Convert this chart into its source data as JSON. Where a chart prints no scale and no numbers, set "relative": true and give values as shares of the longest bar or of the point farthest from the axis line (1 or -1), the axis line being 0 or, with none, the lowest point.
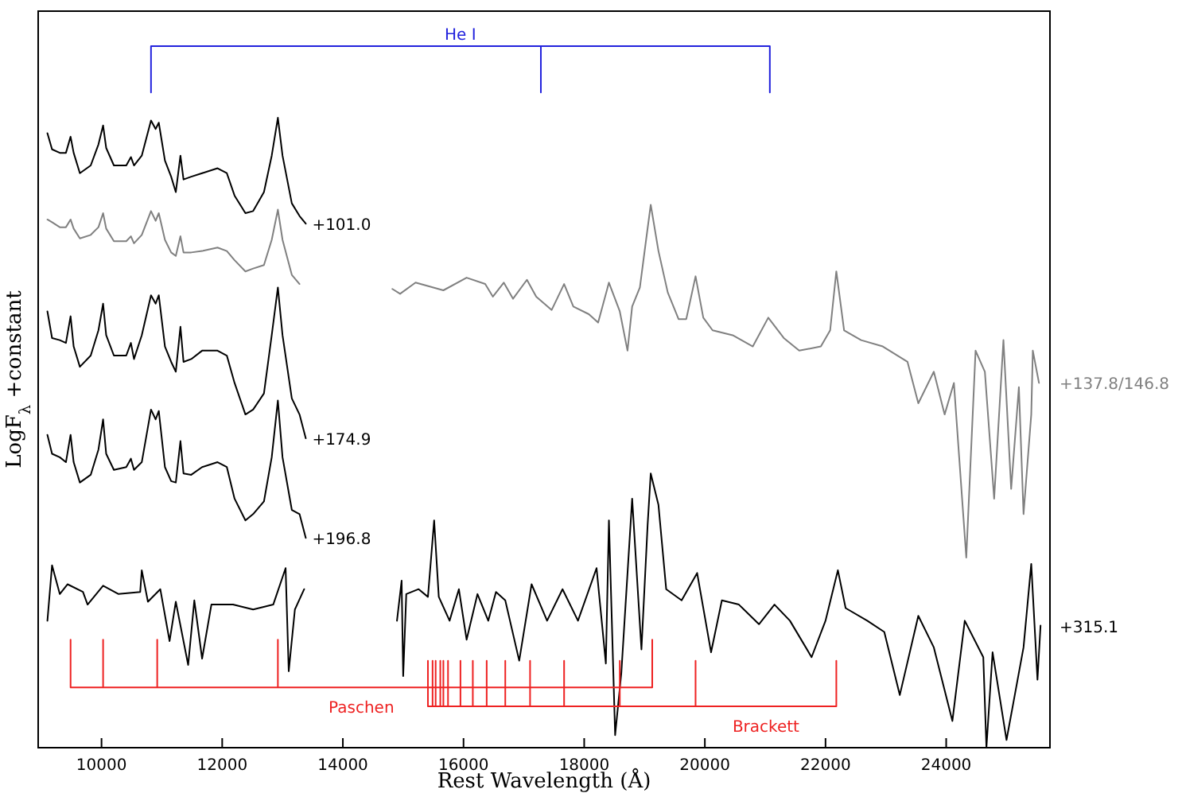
{
  "chart_data": {
    "type": "line",
    "xlabel": "Rest Wavelength (Å)",
    "ylabel": "LogF$_{λ}$ +constant",
    "relative": true,
    "xlim": [
      8950,
      25720
    ],
    "xticks": [
      10000,
      12000,
      14000,
      16000,
      18000,
      20000,
      22000,
      24000
    ],
    "tick_labels": "x",
    "grid": false,
    "series": [
      {
        "name": "+101.0",
        "color": "#000000",
        "x": [
          9103,
          9180,
          9308,
          9410,
          9487,
          9538,
          9641,
          9821,
          9949,
          10026,
          10077,
          10205,
          10410,
          10487,
          10538,
          10667,
          10820,
          10897,
          10949,
          11051,
          11154,
          11231,
          11308,
          11359,
          11487,
          11667,
          11923,
          12077,
          12205,
          12385,
          12513,
          12692,
          12821,
          12923,
          13000,
          13154,
          13282,
          13385
        ],
        "values": [
          0.876,
          0.853,
          0.848,
          0.848,
          0.871,
          0.848,
          0.819,
          0.83,
          0.86,
          0.887,
          0.855,
          0.83,
          0.83,
          0.842,
          0.83,
          0.844,
          0.894,
          0.882,
          0.891,
          0.837,
          0.814,
          0.792,
          0.844,
          0.81,
          0.814,
          0.819,
          0.826,
          0.819,
          0.787,
          0.762,
          0.765,
          0.792,
          0.844,
          0.898,
          0.844,
          0.776,
          0.758,
          0.747
        ]
      },
      {
        "name": "+137.8/146.8",
        "color": "#808080",
        "x": [
          9103,
          9180,
          9308,
          9410,
          9487,
          9538,
          9641,
          9821,
          9949,
          10026,
          10077,
          10205,
          10410,
          10487,
          10538,
          10667,
          10820,
          10897,
          10949,
          11051,
          11154,
          11231,
          11308,
          11359,
          11487,
          11667,
          11923,
          12077,
          12205,
          12385,
          12513,
          12692,
          12821,
          12923,
          13000,
          13154,
          13282,
          14000,
          14820,
          14949,
          15205,
          15666,
          16051,
          16359,
          16487,
          16667,
          16820,
          17051,
          17205,
          17461,
          17667,
          17820,
          18077,
          18231,
          18410,
          18590,
          18718,
          18795,
          18923,
          19026,
          19103,
          19231,
          19385,
          19564,
          19692,
          19846,
          19974,
          20128,
          20461,
          20795,
          21051,
          21308,
          21564,
          21923,
          22077,
          22179,
          22308,
          22590,
          22949,
          23359,
          23538,
          23795,
          23974,
          24128,
          24333,
          24487,
          24641,
          24795,
          24949,
          25077,
          25205,
          25282,
          25410,
          25436,
          25538
        ],
        "values": [
          0.753,
          0.749,
          0.742,
          0.742,
          0.753,
          0.74,
          0.726,
          0.731,
          0.742,
          0.762,
          0.74,
          0.722,
          0.722,
          0.729,
          0.719,
          0.731,
          0.765,
          0.751,
          0.762,
          0.724,
          0.706,
          0.701,
          0.729,
          0.706,
          0.706,
          0.708,
          0.713,
          0.708,
          0.695,
          0.679,
          0.683,
          0.688,
          0.724,
          0.767,
          0.724,
          0.674,
          0.661,
          null,
          0.654,
          0.647,
          0.663,
          0.652,
          0.67,
          0.661,
          0.643,
          0.663,
          0.64,
          0.667,
          0.643,
          0.624,
          0.661,
          0.629,
          0.618,
          0.606,
          0.663,
          0.622,
          0.566,
          0.629,
          0.656,
          0.724,
          0.774,
          0.708,
          0.649,
          0.611,
          0.611,
          0.672,
          0.613,
          0.595,
          0.588,
          0.572,
          0.613,
          0.584,
          0.566,
          0.572,
          0.595,
          0.679,
          0.595,
          0.581,
          0.572,
          0.55,
          0.491,
          0.536,
          0.475,
          0.52,
          0.271,
          0.566,
          0.536,
          0.355,
          0.581,
          0.369,
          0.514,
          0.333,
          0.475,
          0.566,
          0.52
        ]
      },
      {
        "name": "+174.9",
        "color": "#000000",
        "x": [
          9103,
          9180,
          9308,
          9410,
          9487,
          9538,
          9641,
          9821,
          9949,
          10026,
          10077,
          10205,
          10410,
          10487,
          10538,
          10667,
          10820,
          10897,
          10949,
          11051,
          11154,
          11231,
          11308,
          11359,
          11487,
          11667,
          11923,
          12077,
          12205,
          12385,
          12513,
          12692,
          12821,
          12923,
          13000,
          13154,
          13282,
          13385
        ],
        "values": [
          0.622,
          0.584,
          0.581,
          0.577,
          0.615,
          0.572,
          0.543,
          0.559,
          0.595,
          0.633,
          0.588,
          0.559,
          0.559,
          0.577,
          0.554,
          0.588,
          0.645,
          0.633,
          0.645,
          0.572,
          0.55,
          0.536,
          0.6,
          0.55,
          0.554,
          0.566,
          0.566,
          0.559,
          0.52,
          0.475,
          0.482,
          0.505,
          0.588,
          0.656,
          0.588,
          0.498,
          0.475,
          0.441
        ]
      },
      {
        "name": "+196.8",
        "color": "#000000",
        "x": [
          9103,
          9180,
          9308,
          9410,
          9487,
          9538,
          9641,
          9821,
          9949,
          10026,
          10077,
          10205,
          10410,
          10487,
          10538,
          10667,
          10820,
          10897,
          10949,
          11051,
          11154,
          11231,
          11308,
          11359,
          11487,
          11667,
          11923,
          12077,
          12205,
          12385,
          12513,
          12692,
          12821,
          12923,
          13000,
          13154,
          13282,
          13385
        ],
        "values": [
          0.446,
          0.419,
          0.414,
          0.407,
          0.446,
          0.407,
          0.378,
          0.389,
          0.425,
          0.468,
          0.419,
          0.396,
          0.4,
          0.412,
          0.396,
          0.407,
          0.482,
          0.468,
          0.48,
          0.4,
          0.38,
          0.378,
          0.437,
          0.391,
          0.389,
          0.4,
          0.407,
          0.4,
          0.355,
          0.324,
          0.333,
          0.351,
          0.414,
          0.495,
          0.414,
          0.339,
          0.333,
          0.299
        ]
      },
      {
        "name": "+315.1",
        "color": "#000000",
        "x": [
          9103,
          9180,
          9308,
          9436,
          9692,
          9769,
          10026,
          10282,
          10641,
          10667,
          10769,
          10974,
          11128,
          11231,
          11436,
          11538,
          11667,
          11821,
          12179,
          12513,
          12846,
          13051,
          13103,
          13205,
          13359,
          14000,
          14897,
          14974,
          15000,
          15051,
          15256,
          15410,
          15513,
          15590,
          15769,
          15923,
          16051,
          16231,
          16410,
          16538,
          16692,
          16923,
          17128,
          17385,
          17641,
          17897,
          18205,
          18359,
          18410,
          18513,
          18615,
          18795,
          18949,
          19051,
          19103,
          19231,
          19359,
          19615,
          19872,
          20103,
          20282,
          20564,
          20897,
          21154,
          21410,
          21769,
          22000,
          22205,
          22333,
          22692,
          22974,
          23231,
          23538,
          23795,
          24103,
          24308,
          24615,
          24667,
          24769,
          25000,
          25282,
          25410,
          25513,
          25564
        ],
        "values": [
          0.181,
          0.26,
          0.219,
          0.233,
          0.222,
          0.204,
          0.231,
          0.219,
          0.222,
          0.253,
          0.208,
          0.226,
          0.152,
          0.208,
          0.118,
          0.21,
          0.127,
          0.204,
          0.204,
          0.197,
          0.204,
          0.256,
          0.109,
          0.197,
          0.226,
          null,
          0.181,
          0.238,
          0.102,
          0.219,
          0.226,
          0.215,
          0.324,
          0.215,
          0.181,
          0.226,
          0.154,
          0.219,
          0.181,
          0.222,
          0.21,
          0.124,
          0.233,
          0.181,
          0.226,
          0.181,
          0.256,
          0.12,
          0.324,
          0.018,
          0.106,
          0.355,
          0.14,
          0.317,
          0.391,
          0.346,
          0.226,
          0.21,
          0.249,
          0.136,
          0.21,
          0.204,
          0.176,
          0.204,
          0.181,
          0.129,
          0.181,
          0.253,
          0.199,
          0.181,
          0.165,
          0.075,
          0.188,
          0.143,
          0.038,
          0.181,
          0.129,
          0,
          0.136,
          0.011,
          0.143,
          0.262,
          0.097,
          0.174
        ]
      },
      {
        "name": "He I",
        "color": "#2222dd",
        "x": [
          10820,
          10820,
          17282,
          17282,
          17282,
          21077,
          21077
        ],
        "values": [
          0.934,
          1.0,
          1.0,
          0.934,
          1.0,
          1.0,
          0.934
        ]
      },
      {
        "name": "Paschen",
        "color": "#ee2222",
        "x": [
          9487,
          9487,
          10026,
          10026,
          10026,
          10923,
          10923,
          10923,
          12923,
          12923,
          12923,
          19128,
          19128
        ],
        "values": [
          0.154,
          0.086,
          0.086,
          0.154,
          0.086,
          0.086,
          0.154,
          0.086,
          0.086,
          0.154,
          0.086,
          0.086,
          0.154
        ]
      },
      {
        "name": "Brackett",
        "color": "#ee2222",
        "x": [
          15410,
          15410,
          15487,
          15487,
          15487,
          15538,
          15538,
          15538,
          15615,
          15615,
          15615,
          15666,
          15666,
          15666,
          15743,
          15743,
          15743,
          15949,
          15949,
          15949,
          16154,
          16154,
          16154,
          16384,
          16384,
          16384,
          16692,
          16692,
          16692,
          17103,
          17103,
          17103,
          17667,
          17667,
          17667,
          18590,
          18590,
          18590,
          19846,
          19846,
          19846,
          22179,
          22179
        ],
        "values": [
          0.124,
          0.059,
          0.059,
          0.124,
          0.059,
          0.059,
          0.124,
          0.059,
          0.059,
          0.124,
          0.059,
          0.059,
          0.124,
          0.059,
          0.059,
          0.124,
          0.059,
          0.059,
          0.124,
          0.059,
          0.059,
          0.124,
          0.059,
          0.059,
          0.124,
          0.059,
          0.059,
          0.124,
          0.059,
          0.059,
          0.124,
          0.059,
          0.059,
          0.124,
          0.059,
          0.059,
          0.124,
          0.059,
          0.059,
          0.124,
          0.059,
          0.059,
          0.124
        ]
      }
    ]
  }
}
